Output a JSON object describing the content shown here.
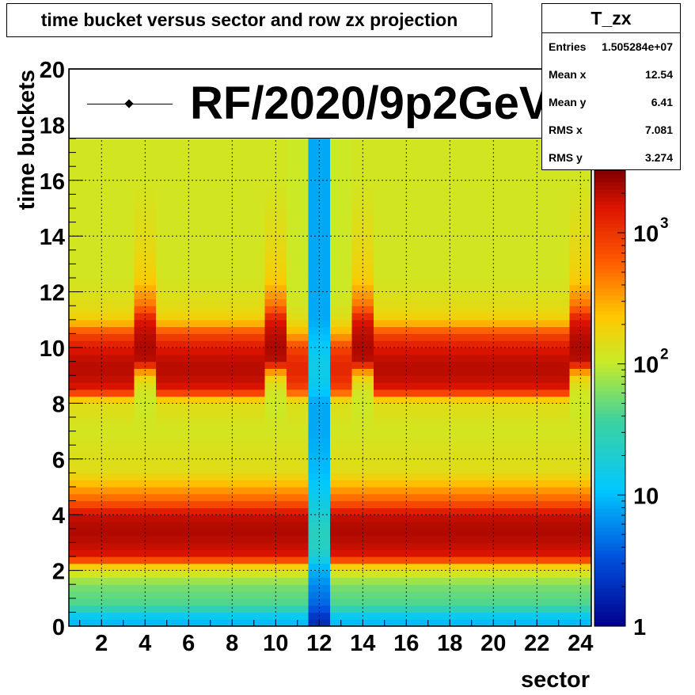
{
  "title": "time bucket versus sector and row zx projection",
  "stats": {
    "name": "T_zx",
    "rows": [
      {
        "label": "Entries",
        "value": "1.505284e+07"
      },
      {
        "label": "Mean x",
        "value": "12.54"
      },
      {
        "label": "Mean y",
        "value": "6.41"
      },
      {
        "label": "RMS x",
        "value": "7.081"
      },
      {
        "label": "RMS y",
        "value": "3.274"
      }
    ]
  },
  "legend": {
    "entry": "RF/2020/9p2GeV"
  },
  "chart_data": {
    "type": "heatmap",
    "title": "time bucket versus sector and row zx projection",
    "xlabel": "sector",
    "ylabel": "time buckets",
    "xlim": [
      0.5,
      24.5
    ],
    "ylim": [
      0,
      20
    ],
    "x_ticks": [
      "2",
      "4",
      "6",
      "8",
      "10",
      "12",
      "14",
      "16",
      "18",
      "20",
      "22",
      "24"
    ],
    "y_ticks": [
      "0",
      "2",
      "4",
      "6",
      "8",
      "10",
      "12",
      "14",
      "16",
      "18",
      "20"
    ],
    "grid": true,
    "z_scale": "log",
    "zlim": [
      1,
      3000
    ],
    "colorbar_ticks": [
      {
        "value": 1,
        "base": "1",
        "exp": ""
      },
      {
        "value": 10,
        "base": "10",
        "exp": ""
      },
      {
        "value": 100,
        "base": "10",
        "exp": "2"
      },
      {
        "value": 1000,
        "base": "10",
        "exp": "3"
      }
    ],
    "sectors": [
      1,
      2,
      3,
      4,
      5,
      6,
      7,
      8,
      9,
      10,
      11,
      12,
      13,
      14,
      15,
      16,
      17,
      18,
      19,
      20,
      21,
      22,
      23,
      24
    ],
    "profile_types": [
      "normal",
      "normal",
      "normal",
      "late",
      "normal",
      "normal",
      "normal",
      "normal",
      "normal",
      "late",
      "mid",
      "dead",
      "mid",
      "late",
      "normal",
      "normal",
      "normal",
      "normal",
      "normal",
      "normal",
      "normal",
      "normal",
      "normal",
      "late"
    ],
    "profile_time_buckets": [
      0.25,
      0.75,
      1.5,
      2.15,
      2.5,
      3.0,
      3.5,
      4.0,
      4.5,
      5.5,
      7.0,
      8.05,
      8.5,
      9.0,
      9.5,
      10.0,
      10.5,
      11.0,
      11.5,
      12.5,
      14,
      16,
      18,
      20
    ],
    "profiles": {
      "normal": [
        10,
        40,
        60,
        200,
        1500,
        2000,
        2200,
        1800,
        600,
        150,
        120,
        150,
        1500,
        2000,
        2000,
        1500,
        800,
        200,
        150,
        120,
        120,
        120,
        120,
        120
      ],
      "late": [
        10,
        40,
        60,
        200,
        1500,
        2000,
        2200,
        1800,
        600,
        150,
        120,
        110,
        120,
        200,
        2000,
        2200,
        2000,
        1500,
        500,
        200,
        150,
        120,
        120,
        120
      ],
      "mid": [
        10,
        40,
        60,
        200,
        1500,
        2000,
        2200,
        1800,
        600,
        150,
        120,
        140,
        800,
        1200,
        1200,
        800,
        300,
        150,
        120,
        110,
        110,
        110,
        110,
        110
      ],
      "dead": [
        2,
        4,
        6,
        10,
        20,
        25,
        25,
        20,
        15,
        10,
        8,
        8,
        12,
        15,
        15,
        12,
        10,
        8,
        8,
        8,
        8,
        8,
        8,
        8
      ]
    }
  }
}
